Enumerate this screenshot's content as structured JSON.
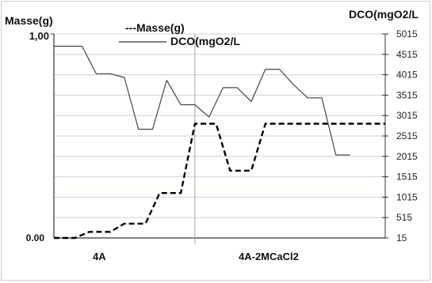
{
  "chart_data": {
    "type": "line",
    "left_axis": {
      "title": "Masse(g)",
      "ticks": [
        "1,00",
        "0.00"
      ],
      "ylim": [
        0,
        1
      ]
    },
    "right_axis": {
      "title": "DCO(mgO2/L",
      "ticks": [
        "5015",
        "4515",
        "4015",
        "3515",
        "3015",
        "2515",
        "2015",
        "1515",
        "1015",
        "515",
        "15"
      ],
      "ylim": [
        15,
        5015
      ]
    },
    "x_ticks": [
      "4A",
      "4A-2MCaCl2"
    ],
    "legend": {
      "position": "top-center"
    },
    "series": [
      {
        "name": "---Masse(g)",
        "axis": "left",
        "style": "dashed",
        "color": "#000000",
        "x": [
          0,
          1.5,
          2.5,
          4.0,
          5.0,
          6.5,
          7.5,
          9.0,
          10.0,
          11.5,
          12.5,
          14.0,
          15.0,
          16.5,
          17.5,
          19.0,
          20.0,
          21.5,
          22.5,
          23.5
        ],
        "y": [
          0.0,
          0.0,
          0.03,
          0.03,
          0.07,
          0.07,
          0.22,
          0.22,
          0.56,
          0.56,
          0.33,
          0.33,
          0.56,
          0.56,
          0.56,
          0.56,
          0.56,
          0.56,
          0.56,
          0.56
        ]
      },
      {
        "name": "DCO(mgO2/L",
        "axis": "right",
        "style": "solid",
        "color": "#444444",
        "x": [
          0,
          2.0,
          3.0,
          4.0,
          5.0,
          6.0,
          7.0,
          8.0,
          9.0,
          10.0,
          11.0,
          12.0,
          13.0,
          14.0,
          15.0,
          16.0,
          17.0,
          18.0,
          19.0,
          20.0,
          21.0
        ],
        "y": [
          4715,
          4715,
          4040,
          4040,
          3950,
          2680,
          2680,
          3880,
          3280,
          3280,
          2980,
          3700,
          3700,
          3360,
          4150,
          4150,
          3770,
          3450,
          3450,
          2050,
          2050
        ]
      }
    ],
    "vertical_line_at_x": 10.0,
    "grid": true
  }
}
